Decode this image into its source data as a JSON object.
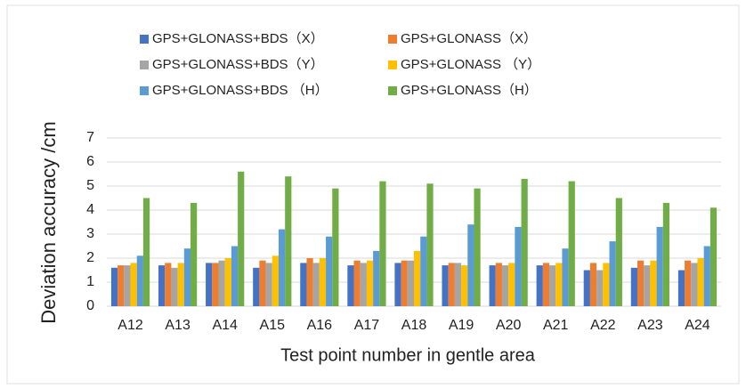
{
  "chart_data": {
    "type": "bar",
    "categories": [
      "A12",
      "A13",
      "A14",
      "A15",
      "A16",
      "A17",
      "A18",
      "A19",
      "A20",
      "A21",
      "A22",
      "A23",
      "A24"
    ],
    "series": [
      {
        "name": "GPS+GLONASS+BDS（X）",
        "color": "#4472c4",
        "values": [
          1.6,
          1.7,
          1.8,
          1.6,
          1.8,
          1.7,
          1.8,
          1.7,
          1.7,
          1.7,
          1.5,
          1.6,
          1.5
        ]
      },
      {
        "name": "GPS+GLONASS（X）",
        "color": "#ed7d31",
        "values": [
          1.7,
          1.8,
          1.8,
          1.9,
          2.0,
          1.9,
          1.9,
          1.8,
          1.8,
          1.8,
          1.8,
          1.9,
          1.9
        ]
      },
      {
        "name": "GPS+GLONASS+BDS（Y）",
        "color": "#a5a5a5",
        "values": [
          1.7,
          1.6,
          1.9,
          1.8,
          1.8,
          1.8,
          1.9,
          1.8,
          1.7,
          1.7,
          1.5,
          1.7,
          1.8
        ]
      },
      {
        "name": "GPS+GLONASS （Y）",
        "color": "#ffc000",
        "values": [
          1.8,
          1.8,
          2.0,
          2.1,
          2.0,
          1.9,
          2.3,
          1.7,
          1.8,
          1.8,
          1.8,
          1.9,
          2.0
        ]
      },
      {
        "name": "GPS+GLONASS+BDS （H）",
        "color": "#5b9bd5",
        "values": [
          2.1,
          2.4,
          2.5,
          3.2,
          2.9,
          2.3,
          2.9,
          3.4,
          3.3,
          2.4,
          2.7,
          3.3,
          2.5
        ]
      },
      {
        "name": "GPS+GLONASS（H）",
        "color": "#70ad47",
        "values": [
          4.5,
          4.3,
          5.6,
          5.4,
          4.9,
          5.2,
          5.1,
          4.9,
          5.3,
          5.2,
          4.5,
          4.3,
          4.1
        ]
      }
    ],
    "xlabel": "Test point number in gentle area",
    "ylabel": "Deviation accuracy /cm",
    "ylim": [
      0,
      7
    ],
    "yticks": [
      0,
      1,
      2,
      3,
      4,
      5,
      6,
      7
    ],
    "grid": true
  }
}
